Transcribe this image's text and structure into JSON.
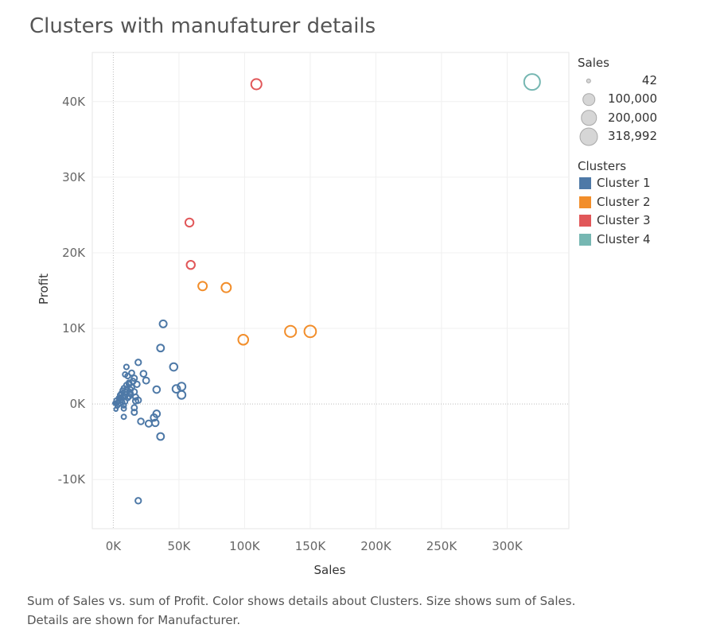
{
  "chart_data": {
    "type": "scatter",
    "title": "Clusters with manufaturer details",
    "xlabel": "Sales",
    "ylabel": "Profit",
    "xlim": [
      -16000,
      347000
    ],
    "ylim": [
      -16500,
      46500
    ],
    "xticks": [
      0,
      50000,
      100000,
      150000,
      200000,
      250000,
      300000
    ],
    "xtick_labels": [
      "0K",
      "50K",
      "100K",
      "150K",
      "200K",
      "250K",
      "300K"
    ],
    "yticks": [
      -10000,
      0,
      10000,
      20000,
      30000,
      40000
    ],
    "ytick_labels": [
      "-10K",
      "0K",
      "10K",
      "20K",
      "30K",
      "40K"
    ],
    "grid": true,
    "legend_position": "right",
    "size_legend": {
      "title": "Sales",
      "entries": [
        {
          "label": "42",
          "value": 42
        },
        {
          "label": "100,000",
          "value": 100000
        },
        {
          "label": "200,000",
          "value": 200000
        },
        {
          "label": "318,992",
          "value": 318992
        }
      ]
    },
    "color_legend": {
      "title": "Clusters",
      "entries": [
        {
          "label": "Cluster 1",
          "color": "#4e79a7"
        },
        {
          "label": "Cluster 2",
          "color": "#f28e2b"
        },
        {
          "label": "Cluster 3",
          "color": "#e15759"
        },
        {
          "label": "Cluster 4",
          "color": "#76b7b2"
        }
      ]
    },
    "series": [
      {
        "name": "Cluster 1",
        "color": "#4e79a7",
        "points": [
          [
            38000,
            10600
          ],
          [
            36000,
            7400
          ],
          [
            46000,
            4900
          ],
          [
            48000,
            2000
          ],
          [
            52000,
            2300
          ],
          [
            52000,
            1200
          ],
          [
            33000,
            1900
          ],
          [
            33000,
            -1300
          ],
          [
            31000,
            -1800
          ],
          [
            32000,
            -2500
          ],
          [
            27000,
            -2600
          ],
          [
            21000,
            -2300
          ],
          [
            36000,
            -4300
          ],
          [
            19000,
            -12800
          ],
          [
            19000,
            5500
          ],
          [
            10000,
            4900
          ],
          [
            23000,
            4000
          ],
          [
            25000,
            3100
          ],
          [
            14000,
            4100
          ],
          [
            16000,
            3400
          ],
          [
            11000,
            3700
          ],
          [
            9000,
            3900
          ],
          [
            18000,
            2600
          ],
          [
            12000,
            2600
          ],
          [
            14000,
            2200
          ],
          [
            10000,
            2500
          ],
          [
            13000,
            1900
          ],
          [
            16000,
            1600
          ],
          [
            9000,
            1600
          ],
          [
            10000,
            1300
          ],
          [
            8000,
            1100
          ],
          [
            6000,
            1400
          ],
          [
            11000,
            800
          ],
          [
            12000,
            1000
          ],
          [
            17000,
            900
          ],
          [
            19000,
            500
          ],
          [
            17000,
            400
          ],
          [
            6000,
            900
          ],
          [
            9000,
            300
          ],
          [
            5000,
            700
          ],
          [
            7000,
            200
          ],
          [
            8000,
            -200
          ],
          [
            4000,
            400
          ],
          [
            3000,
            200
          ],
          [
            2000,
            0
          ],
          [
            1000,
            100
          ],
          [
            4000,
            -100
          ],
          [
            3000,
            -300
          ],
          [
            2000,
            -700
          ],
          [
            8000,
            -600
          ],
          [
            16000,
            -500
          ],
          [
            16000,
            -1100
          ],
          [
            8000,
            -1700
          ],
          [
            5000,
            1200
          ],
          [
            7000,
            1800
          ],
          [
            12000,
            2800
          ],
          [
            15000,
            3000
          ],
          [
            8000,
            2100
          ],
          [
            13000,
            1400
          ],
          [
            4000,
            800
          ],
          [
            2000,
            500
          ],
          [
            6000,
            500
          ],
          [
            9000,
            1000
          ],
          [
            10000,
            1900
          ]
        ]
      },
      {
        "name": "Cluster 2",
        "color": "#f28e2b",
        "points": [
          [
            68000,
            15600
          ],
          [
            86000,
            15400
          ],
          [
            99000,
            8500
          ],
          [
            135000,
            9600
          ],
          [
            150000,
            9600
          ]
        ]
      },
      {
        "name": "Cluster 3",
        "color": "#e15759",
        "points": [
          [
            109000,
            42300
          ],
          [
            58000,
            24000
          ],
          [
            59000,
            18400
          ]
        ]
      },
      {
        "name": "Cluster 4",
        "color": "#76b7b2",
        "points": [
          [
            319000,
            42600
          ]
        ]
      }
    ]
  },
  "caption": "Sum of Sales vs. sum of Profit.  Color shows details about Clusters.  Size shows sum of Sales.  Details are shown for Manufacturer."
}
